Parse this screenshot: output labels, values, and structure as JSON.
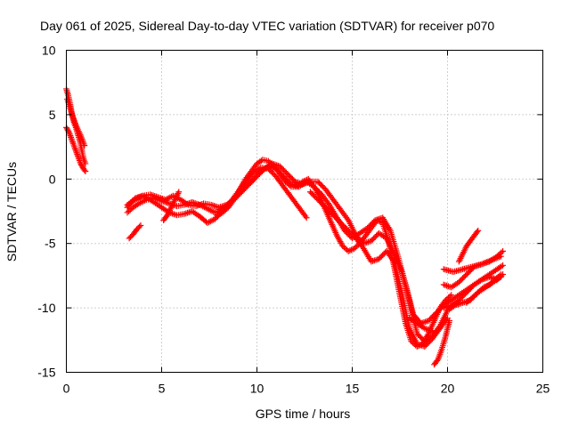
{
  "chart_data": {
    "type": "scatter",
    "title": "Day 061 of 2025, Sidereal Day-to-day VTEC variation (SDTVAR) for receiver p070",
    "xlabel": "GPS time / hours",
    "ylabel": "SDTVAR / TECUs",
    "xlim": [
      0,
      25
    ],
    "ylim": [
      -15,
      10
    ],
    "xticks": [
      0,
      5,
      10,
      15,
      20,
      25
    ],
    "yticks": [
      -15,
      -10,
      -5,
      0,
      5,
      10
    ],
    "xtick_labels": [
      "0",
      "5",
      "10",
      "15",
      "20",
      "25"
    ],
    "ytick_labels": [
      "-15",
      "-10",
      "-5",
      "0",
      "5",
      "10"
    ],
    "grid": true,
    "marker": "+",
    "series": [
      {
        "name": "p070",
        "color": "#ff0000",
        "tracks": [
          {
            "x": [
              0.0,
              0.1,
              0.2,
              0.3,
              0.4,
              0.5,
              0.6,
              0.7,
              0.8,
              0.9,
              1.0
            ],
            "y": [
              7.0,
              6.5,
              5.8,
              5.0,
              4.4,
              4.0,
              3.5,
              3.0,
              2.3,
              1.6,
              1.2
            ]
          },
          {
            "x": [
              0.0,
              0.15,
              0.3,
              0.45,
              0.6,
              0.75,
              0.9,
              1.0
            ],
            "y": [
              4.0,
              3.6,
              3.0,
              2.4,
              1.8,
              1.2,
              0.8,
              0.6
            ]
          },
          {
            "x": [
              0.05,
              0.2,
              0.35,
              0.5,
              0.65,
              0.8,
              0.95
            ],
            "y": [
              6.2,
              5.5,
              4.8,
              4.2,
              3.7,
              3.2,
              2.6
            ]
          },
          {
            "x": [
              3.2,
              3.4,
              3.6,
              3.8,
              4.0,
              4.3,
              4.6,
              5.0,
              5.4,
              5.8,
              6.2,
              6.6,
              7.0,
              7.4,
              7.8,
              8.2,
              8.6,
              9.0,
              9.4,
              9.8,
              10.2,
              10.6,
              11.0,
              11.4,
              11.8,
              12.2,
              12.6
            ],
            "y": [
              -2.2,
              -1.8,
              -1.5,
              -1.4,
              -1.3,
              -1.5,
              -1.8,
              -2.2,
              -2.6,
              -2.8,
              -2.7,
              -2.5,
              -2.9,
              -3.4,
              -3.1,
              -2.5,
              -1.8,
              -1.0,
              -0.2,
              0.5,
              0.9,
              0.8,
              0.2,
              -0.6,
              -1.4,
              -2.2,
              -3.0
            ]
          },
          {
            "x": [
              3.2,
              3.5,
              3.8,
              4.2,
              4.6,
              5.0,
              5.4,
              5.8,
              6.2,
              6.6,
              7.0,
              7.4,
              7.8,
              8.2,
              8.6,
              9.0,
              9.4,
              9.8,
              10.2,
              10.6,
              11.0,
              11.4,
              11.8,
              12.2,
              12.6,
              13.0,
              13.4,
              13.8,
              14.2,
              14.6,
              15.0,
              15.4,
              15.8,
              16.2,
              16.6,
              17.0,
              17.4,
              17.8,
              18.2,
              18.6,
              19.0,
              19.4,
              19.8,
              20.2,
              20.6,
              21.0,
              21.4,
              21.8,
              22.2,
              22.6,
              22.9
            ],
            "y": [
              -2.6,
              -2.2,
              -1.9,
              -1.6,
              -1.5,
              -1.7,
              -1.9,
              -2.1,
              -2.0,
              -1.8,
              -2.0,
              -2.3,
              -2.6,
              -2.4,
              -1.8,
              -1.2,
              -0.6,
              0.0,
              0.6,
              1.0,
              0.8,
              0.2,
              -0.4,
              -0.6,
              -0.2,
              -0.6,
              -1.2,
              -2.0,
              -3.0,
              -4.0,
              -4.6,
              -4.2,
              -3.8,
              -3.2,
              -3.0,
              -4.0,
              -6.0,
              -8.2,
              -10.5,
              -11.2,
              -11.0,
              -10.4,
              -9.8,
              -9.4,
              -9.0,
              -8.6,
              -8.2,
              -7.8,
              -7.4,
              -7.0,
              -6.7
            ]
          },
          {
            "x": [
              3.2,
              3.6,
              4.0,
              4.4,
              4.8,
              5.2,
              5.6,
              6.0,
              6.4,
              6.8,
              7.2,
              7.6,
              8.0,
              8.4,
              8.8,
              9.2,
              9.6,
              10.0,
              10.4,
              10.8,
              11.2,
              11.6,
              12.0,
              12.4,
              12.8,
              13.2,
              13.6,
              14.0,
              14.4,
              14.8,
              15.2,
              15.6,
              16.0,
              16.4,
              16.8,
              17.2,
              17.6,
              18.0,
              18.4,
              18.8,
              19.2,
              19.6,
              20.0,
              20.4,
              20.8,
              21.2,
              21.6,
              22.0,
              22.4,
              22.8
            ],
            "y": [
              -2.0,
              -1.6,
              -1.3,
              -1.2,
              -1.4,
              -1.6,
              -1.3,
              -1.6,
              -2.0,
              -2.1,
              -1.9,
              -2.0,
              -2.2,
              -2.0,
              -1.6,
              -1.0,
              -0.4,
              0.2,
              0.8,
              1.2,
              1.0,
              0.4,
              -0.2,
              -0.4,
              -0.2,
              -0.2,
              -0.8,
              -1.6,
              -2.4,
              -3.2,
              -4.4,
              -5.0,
              -4.8,
              -4.2,
              -4.6,
              -5.8,
              -7.2,
              -9.4,
              -12.0,
              -12.6,
              -12.2,
              -11.4,
              -10.2,
              -9.8,
              -9.6,
              -9.4,
              -8.8,
              -8.4,
              -8.0,
              -7.6
            ]
          },
          {
            "x": [
              3.3,
              3.5,
              3.7,
              3.9
            ],
            "y": [
              -4.6,
              -4.3,
              -3.9,
              -3.6
            ]
          },
          {
            "x": [
              5.1,
              5.3,
              5.5,
              5.7,
              5.9
            ],
            "y": [
              -3.2,
              -2.8,
              -2.2,
              -1.6,
              -1.0
            ]
          },
          {
            "x": [
              7.9,
              8.2,
              8.5,
              8.8,
              9.1,
              9.4,
              9.7,
              10.0,
              10.3,
              10.6,
              10.9,
              11.2,
              11.5,
              11.8,
              12.1,
              12.4,
              12.7,
              13.0,
              13.3,
              13.6,
              13.9,
              14.2,
              14.5,
              14.8,
              15.1,
              15.4,
              15.7,
              16.0,
              16.3,
              16.6,
              16.9,
              17.2,
              17.5,
              17.8,
              18.1,
              18.4,
              18.7,
              19.0,
              19.3,
              19.6,
              19.9,
              20.2
            ],
            "y": [
              -2.8,
              -2.6,
              -2.2,
              -1.6,
              -0.8,
              0.0,
              0.6,
              1.2,
              1.5,
              1.4,
              1.0,
              0.4,
              -0.2,
              -0.6,
              -0.6,
              -0.2,
              0.0,
              -0.6,
              -1.4,
              -2.4,
              -3.4,
              -4.4,
              -5.2,
              -5.6,
              -5.4,
              -5.0,
              -4.4,
              -3.8,
              -3.2,
              -3.4,
              -4.8,
              -6.8,
              -9.0,
              -11.2,
              -12.6,
              -13.0,
              -12.8,
              -12.0,
              -11.0,
              -10.0,
              -9.4,
              -9.0
            ]
          },
          {
            "x": [
              12.8,
              13.2,
              13.6,
              14.0,
              14.4,
              14.8,
              15.2,
              15.6,
              16.0,
              16.4,
              16.8,
              17.2,
              17.6,
              18.0,
              18.4,
              18.8,
              19.2,
              19.6,
              20.0
            ],
            "y": [
              -1.0,
              -1.6,
              -2.2,
              -2.8,
              -3.4,
              -4.0,
              -4.6,
              -5.4,
              -6.4,
              -6.2,
              -5.6,
              -6.4,
              -8.8,
              -11.6,
              -12.8,
              -13.0,
              -12.4,
              -11.6,
              -10.8
            ]
          },
          {
            "x": [
              19.3,
              19.5,
              19.7,
              19.9,
              20.1
            ],
            "y": [
              -14.4,
              -14.0,
              -13.2,
              -12.2,
              -11.0
            ]
          },
          {
            "x": [
              18.0,
              18.4,
              18.8,
              19.2
            ],
            "y": [
              -10.8,
              -11.2,
              -11.6,
              -11.8
            ]
          },
          {
            "x": [
              19.8,
              20.3,
              20.8,
              21.3,
              21.8,
              22.3,
              22.8
            ],
            "y": [
              -7.0,
              -7.2,
              -7.0,
              -6.8,
              -6.6,
              -6.3,
              -6.0
            ]
          },
          {
            "x": [
              19.8,
              20.2,
              20.6,
              21.0,
              21.4,
              21.8,
              22.2,
              22.6,
              22.9
            ],
            "y": [
              -8.2,
              -8.4,
              -8.0,
              -7.4,
              -6.8,
              -6.6,
              -6.4,
              -6.0,
              -5.6
            ]
          },
          {
            "x": [
              19.8,
              20.2,
              20.6,
              21.0,
              21.4,
              21.8,
              22.2,
              22.6,
              22.9
            ],
            "y": [
              -10.0,
              -9.8,
              -9.4,
              -8.8,
              -8.2,
              -7.8,
              -7.6,
              -7.8,
              -7.4
            ]
          },
          {
            "x": [
              20.6,
              20.8,
              21.0,
              21.2,
              21.4,
              21.6
            ],
            "y": [
              -6.4,
              -5.8,
              -5.2,
              -4.8,
              -4.4,
              -4.0
            ]
          },
          {
            "x": [
              21.0,
              21.3,
              21.6,
              21.9,
              22.2,
              22.5,
              22.8
            ],
            "y": [
              -9.6,
              -9.2,
              -8.8,
              -8.4,
              -8.2,
              -7.8,
              -7.4
            ]
          }
        ]
      }
    ]
  }
}
